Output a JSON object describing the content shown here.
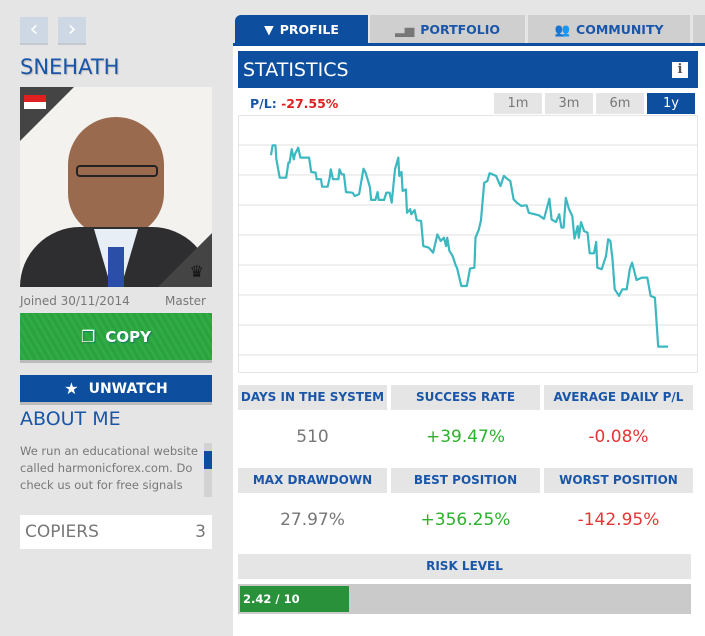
{
  "profile": {
    "name": "SNEHATH",
    "joined": "Joined 30/11/2014",
    "rank": "Master",
    "copy_label": "COPY",
    "unwatch_label": "UNWATCH",
    "about_title": "ABOUT ME",
    "about_text": "We run an educational website called harmonicforex.com. Do check us out for free signals and",
    "copiers_label": "COPIERS",
    "copiers_value": "3",
    "flag": "singapore"
  },
  "nav": {
    "prev": "‹",
    "next": "›"
  },
  "tabs": [
    {
      "label": "PROFILE",
      "icon": "tie-icon",
      "active": true
    },
    {
      "label": "PORTFOLIO",
      "icon": "chart-up-icon"
    },
    {
      "label": "COMMUNITY",
      "icon": "people-icon"
    }
  ],
  "statistics": {
    "title": "STATISTICS",
    "info": "i",
    "pl_label": "P/L:",
    "pl_value": "-27.55%",
    "periods": [
      "1m",
      "3m",
      "6m",
      "1y"
    ],
    "active_period": "1y"
  },
  "stats": [
    {
      "label": "DAYS IN THE SYSTEM",
      "value": "510",
      "tone": "grey"
    },
    {
      "label": "SUCCESS RATE",
      "value": "+39.47%",
      "tone": "green"
    },
    {
      "label": "AVERAGE DAILY P/L",
      "value": "-0.08%",
      "tone": "red"
    },
    {
      "label": "MAX DRAWDOWN",
      "value": "27.97%",
      "tone": "grey"
    },
    {
      "label": "BEST POSITION",
      "value": "+356.25%",
      "tone": "green"
    },
    {
      "label": "WORST POSITION",
      "value": "-142.95%",
      "tone": "red"
    }
  ],
  "risk": {
    "label": "RISK LEVEL",
    "value_text": "2.42 / 10",
    "value": 2.42,
    "max": 10
  },
  "colors": {
    "brand": "#0d4f9e",
    "copy": "#2aa33e",
    "line": "#3bb8c0",
    "positive": "#2bb12b",
    "negative": "#e53535"
  },
  "chart_data": {
    "type": "line",
    "grid": true,
    "gridlines": 8,
    "xlim": [
      0,
      365
    ],
    "ylim": [
      0,
      8
    ],
    "points": [
      [
        0,
        6.66
      ],
      [
        1.5,
        6.99
      ],
      [
        4,
        6.99
      ],
      [
        5,
        6.52
      ],
      [
        8,
        5.91
      ],
      [
        14,
        5.91
      ],
      [
        16,
        6.41
      ],
      [
        17,
        6.41
      ],
      [
        19,
        6.86
      ],
      [
        21,
        6.52
      ],
      [
        22,
        6.69
      ],
      [
        25,
        6.91
      ],
      [
        27,
        6.58
      ],
      [
        35,
        6.58
      ],
      [
        37,
        6.1
      ],
      [
        41,
        6.08
      ],
      [
        42,
        5.86
      ],
      [
        46,
        5.86
      ],
      [
        47,
        5.61
      ],
      [
        52,
        5.61
      ],
      [
        54,
        5.91
      ],
      [
        55,
        6.19
      ],
      [
        57,
        5.86
      ],
      [
        62,
        5.86
      ],
      [
        63,
        6.19
      ],
      [
        65,
        6.02
      ],
      [
        67,
        6.02
      ],
      [
        69,
        5.43
      ],
      [
        75,
        5.41
      ],
      [
        77,
        5.3
      ],
      [
        81,
        5.36
      ],
      [
        85,
        6.21
      ],
      [
        87,
        6.08
      ],
      [
        91,
        5.58
      ],
      [
        92,
        5.17
      ],
      [
        96,
        5.17
      ],
      [
        98,
        5.43
      ],
      [
        99,
        5.17
      ],
      [
        104,
        5.17
      ],
      [
        106,
        5.41
      ],
      [
        109,
        5.41
      ],
      [
        111,
        5.08
      ],
      [
        114,
        6.19
      ],
      [
        117,
        6.58
      ],
      [
        118,
        5.97
      ],
      [
        120,
        6.1
      ],
      [
        121,
        5.47
      ],
      [
        124,
        5.52
      ],
      [
        125,
        4.74
      ],
      [
        128,
        4.86
      ],
      [
        129,
        4.69
      ],
      [
        132,
        4.83
      ],
      [
        134,
        4.5
      ],
      [
        138,
        4.47
      ],
      [
        140,
        3.63
      ],
      [
        145,
        3.58
      ],
      [
        149,
        3.41
      ],
      [
        153,
        4.02
      ],
      [
        156,
        3.8
      ],
      [
        159,
        3.91
      ],
      [
        161,
        3.63
      ],
      [
        162,
        3.91
      ],
      [
        164,
        3.47
      ],
      [
        167,
        3.3
      ],
      [
        170,
        2.97
      ],
      [
        171,
        2.91
      ],
      [
        175,
        2.3
      ],
      [
        180,
        2.3
      ],
      [
        183,
        2.88
      ],
      [
        187,
        2.91
      ],
      [
        188,
        3.91
      ],
      [
        191,
        4.17
      ],
      [
        193,
        4.47
      ],
      [
        196,
        5.74
      ],
      [
        199,
        5.8
      ],
      [
        201,
        6.06
      ],
      [
        207,
        5.97
      ],
      [
        211,
        5.63
      ],
      [
        214,
        5.97
      ],
      [
        217,
        5.88
      ],
      [
        220,
        5.8
      ],
      [
        223,
        5.19
      ],
      [
        226,
        5.08
      ],
      [
        230,
        4.97
      ],
      [
        235,
        4.99
      ],
      [
        237,
        4.74
      ],
      [
        246,
        4.66
      ],
      [
        251,
        4.54
      ],
      [
        256,
        5.21
      ],
      [
        258,
        4.52
      ],
      [
        262,
        4.43
      ],
      [
        265,
        4.69
      ],
      [
        267,
        4.25
      ],
      [
        269,
        4.25
      ],
      [
        271,
        5.24
      ],
      [
        274,
        4.86
      ],
      [
        277,
        4.63
      ],
      [
        279,
        3.88
      ],
      [
        282,
        4.3
      ],
      [
        283,
        3.91
      ],
      [
        285,
        4.43
      ],
      [
        288,
        4.13
      ],
      [
        291,
        4.08
      ],
      [
        293,
        3.39
      ],
      [
        297,
        3.39
      ],
      [
        299,
        3.77
      ],
      [
        300,
        2.91
      ],
      [
        304,
        2.86
      ],
      [
        308,
        3.3
      ],
      [
        310,
        3.86
      ],
      [
        312,
        3.8
      ],
      [
        314,
        3.19
      ],
      [
        316,
        2.19
      ],
      [
        320,
        1.97
      ],
      [
        323,
        2.19
      ],
      [
        327,
        2.19
      ],
      [
        330,
        2.88
      ],
      [
        332,
        3.08
      ],
      [
        336,
        2.5
      ],
      [
        341,
        2.58
      ],
      [
        346,
        2.58
      ],
      [
        349,
        1.97
      ],
      [
        353,
        1.91
      ],
      [
        356,
        0.28
      ],
      [
        365,
        0.28
      ]
    ]
  }
}
